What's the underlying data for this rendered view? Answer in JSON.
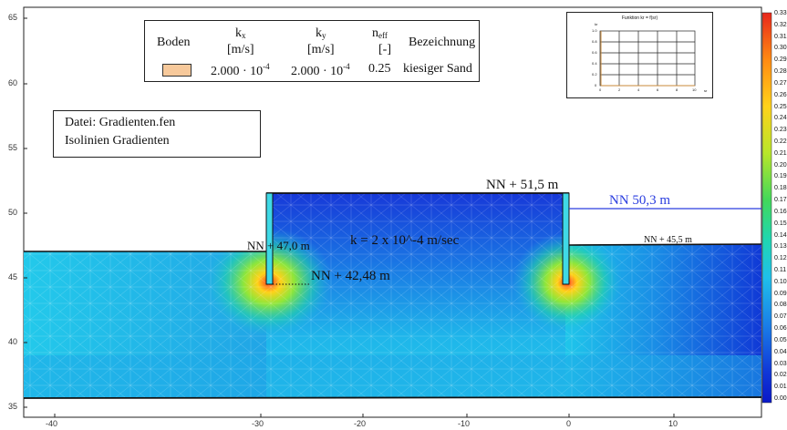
{
  "legend": {
    "headers": {
      "boden": "Boden",
      "kx_main": "k",
      "kx_sub": "x",
      "kx_unit": "[m/s]",
      "ky_main": "k",
      "ky_sub": "y",
      "ky_unit": "[m/s]",
      "neff_main": "n",
      "neff_sub": "eff",
      "neff_unit": "[-]",
      "bezeichnung": "Bezeichnung"
    },
    "row": {
      "kx_base": "2.000 · 10",
      "kx_exp": "-4",
      "ky_base": "2.000 · 10",
      "ky_exp": "-4",
      "neff": "0.25",
      "name": "kiesiger Sand",
      "color": "#f7c99b"
    }
  },
  "info": {
    "file": "Datei: Gradienten.fen",
    "desc": "Isolinien Gradienten"
  },
  "annotations": {
    "nn_left_ground": "NN + 47,0 m",
    "nn_top_wall": "NN + 51,5 m",
    "nn_water": "NN 50,3 m",
    "nn_right_ground": "NN + 45,5 m",
    "nn_wall_tip": "NN + 42,48 m",
    "permeability": "k = 2 x 10^-4 m/sec"
  },
  "inset": {
    "title": "Funktion kr = f(sr)",
    "y_label": "kr",
    "x_label": "sr",
    "y_ticks": [
      "1.0",
      "0.8",
      "0.6",
      "0.4",
      "0.2",
      "0"
    ],
    "x_ticks": [
      "0",
      "2",
      "4",
      "6",
      "8",
      "10"
    ]
  },
  "colorbar": {
    "labels": [
      "0.33",
      "0.32",
      "0.31",
      "0.30",
      "0.29",
      "0.28",
      "0.27",
      "0.26",
      "0.25",
      "0.24",
      "0.23",
      "0.22",
      "0.21",
      "0.20",
      "0.19",
      "0.18",
      "0.17",
      "0.16",
      "0.15",
      "0.14",
      "0.13",
      "0.12",
      "0.11",
      "0.10",
      "0.09",
      "0.08",
      "0.07",
      "0.06",
      "0.05",
      "0.04",
      "0.03",
      "0.02",
      "0.01",
      "0.00"
    ]
  },
  "axes": {
    "x_ticks": [
      "-40",
      "-30",
      "-20",
      "-10",
      "0",
      "10"
    ],
    "y_ticks": [
      "65",
      "60",
      "55",
      "50",
      "45",
      "40",
      "35"
    ]
  },
  "colors": {
    "water_line": "#2a3ddf",
    "frame": "#222222",
    "wall_fill": "#3fd9e6"
  }
}
